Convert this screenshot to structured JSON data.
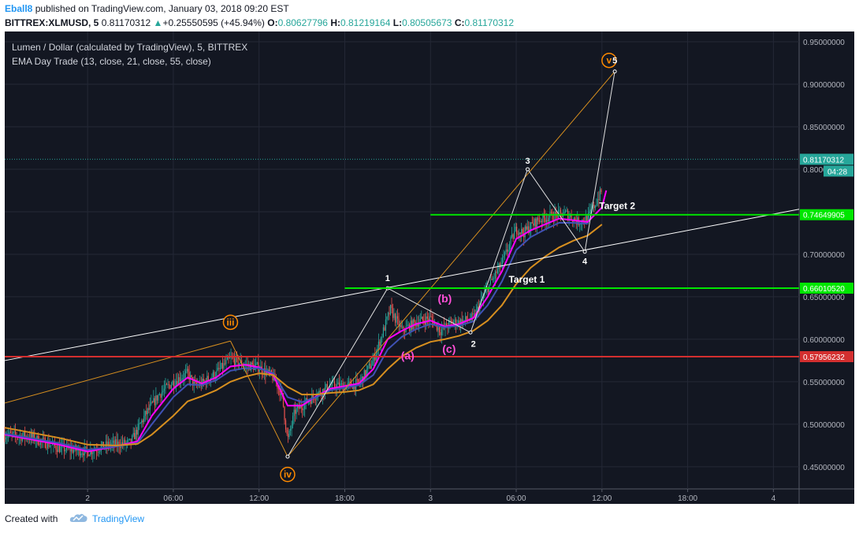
{
  "header": {
    "author": "Eball8",
    "published": "published on TradingView.com, January 03, 2018 09:20 EST",
    "symbol": "BITTREX:XLMUSD, 5",
    "last": "0.81170312",
    "change_arrow": "▲",
    "change": "+0.25550595 (+45.94%)",
    "o_label": "O:",
    "o_value": "0.80627796",
    "h_label": "H:",
    "h_value": "0.81219164",
    "l_label": "L:",
    "l_value": "0.80505673",
    "c_label": "C:",
    "c_value": "0.81170312"
  },
  "footer": {
    "created_with": "Created with",
    "brand": "TradingView"
  },
  "colors": {
    "background": "#131722",
    "grid": "#242836",
    "axis_text": "#b2b5be",
    "green_line": "#00e600",
    "red_line": "#d32f2f",
    "ema13": "#ff00ff",
    "ema21": "#3f51b5",
    "ema55": "#d78f1f",
    "wave_orange": "#ff8a00",
    "wave_pink": "#ff4fd8",
    "white": "#ffffff",
    "price_tag": "#26a69a"
  },
  "chart_data": {
    "type": "candlestick",
    "title": "Lumen / Dollar (calculated by TradingView), 5, BITTREX",
    "indicator": "EMA Day Trade (13, close, 21, close, 55, close)",
    "x_ticks": [
      "2",
      "06:00",
      "12:00",
      "18:00",
      "3",
      "06:00",
      "12:00",
      "18:00",
      "4"
    ],
    "x_tick_hours": [
      0,
      6,
      12,
      18,
      24,
      30,
      36,
      42,
      48
    ],
    "x_range_hours": [
      -5.8,
      49.8
    ],
    "ylim": [
      0.424,
      0.962
    ],
    "y_ticks": [
      "0.45000000",
      "0.50000000",
      "0.55000000",
      "0.60000000",
      "0.65000000",
      "0.70000000",
      "0.75000000",
      "0.80000000",
      "0.85000000",
      "0.90000000",
      "0.95000000"
    ],
    "y_tick_values": [
      0.45,
      0.5,
      0.55,
      0.6,
      0.65,
      0.7,
      0.75,
      0.8,
      0.85,
      0.9,
      0.95
    ],
    "close_path": [
      {
        "t": -5.8,
        "v": 0.488
      },
      {
        "t": -4,
        "v": 0.485
      },
      {
        "t": -2,
        "v": 0.472
      },
      {
        "t": 0,
        "v": 0.468
      },
      {
        "t": 1.5,
        "v": 0.476
      },
      {
        "t": 3,
        "v": 0.478
      },
      {
        "t": 4,
        "v": 0.51
      },
      {
        "t": 5,
        "v": 0.535
      },
      {
        "t": 6,
        "v": 0.55
      },
      {
        "t": 7,
        "v": 0.56
      },
      {
        "t": 7.5,
        "v": 0.545
      },
      {
        "t": 8,
        "v": 0.548
      },
      {
        "t": 9,
        "v": 0.56
      },
      {
        "t": 10,
        "v": 0.577
      },
      {
        "t": 11,
        "v": 0.57
      },
      {
        "t": 12,
        "v": 0.567
      },
      {
        "t": 13,
        "v": 0.555
      },
      {
        "t": 13.6,
        "v": 0.535
      },
      {
        "t": 14,
        "v": 0.48
      },
      {
        "t": 14.5,
        "v": 0.515
      },
      {
        "t": 15,
        "v": 0.522
      },
      {
        "t": 16,
        "v": 0.535
      },
      {
        "t": 17,
        "v": 0.545
      },
      {
        "t": 18,
        "v": 0.545
      },
      {
        "t": 19,
        "v": 0.548
      },
      {
        "t": 20,
        "v": 0.575
      },
      {
        "t": 20.7,
        "v": 0.61
      },
      {
        "t": 21.2,
        "v": 0.635
      },
      {
        "t": 22,
        "v": 0.61
      },
      {
        "t": 23,
        "v": 0.62
      },
      {
        "t": 24,
        "v": 0.625
      },
      {
        "t": 24.7,
        "v": 0.61
      },
      {
        "t": 25.5,
        "v": 0.62
      },
      {
        "t": 26,
        "v": 0.62
      },
      {
        "t": 27,
        "v": 0.625
      },
      {
        "t": 28,
        "v": 0.66
      },
      {
        "t": 29,
        "v": 0.69
      },
      {
        "t": 30,
        "v": 0.73
      },
      {
        "t": 30.5,
        "v": 0.725
      },
      {
        "t": 31.5,
        "v": 0.74
      },
      {
        "t": 32.5,
        "v": 0.745
      },
      {
        "t": 33.5,
        "v": 0.748
      },
      {
        "t": 34.3,
        "v": 0.738
      },
      {
        "t": 35,
        "v": 0.742
      },
      {
        "t": 35.7,
        "v": 0.765
      },
      {
        "t": 36,
        "v": 0.775
      }
    ],
    "series": [
      {
        "name": "EMA 13",
        "color": "#ff00ff",
        "points": [
          {
            "t": -5.8,
            "v": 0.488
          },
          {
            "t": -2,
            "v": 0.476
          },
          {
            "t": 0,
            "v": 0.468
          },
          {
            "t": 2,
            "v": 0.474
          },
          {
            "t": 3.5,
            "v": 0.48
          },
          {
            "t": 4.5,
            "v": 0.51
          },
          {
            "t": 6,
            "v": 0.542
          },
          {
            "t": 7,
            "v": 0.555
          },
          {
            "t": 8,
            "v": 0.548
          },
          {
            "t": 9,
            "v": 0.555
          },
          {
            "t": 10,
            "v": 0.568
          },
          {
            "t": 11,
            "v": 0.57
          },
          {
            "t": 12,
            "v": 0.567
          },
          {
            "t": 13,
            "v": 0.558
          },
          {
            "t": 14,
            "v": 0.522
          },
          {
            "t": 15,
            "v": 0.522
          },
          {
            "t": 16,
            "v": 0.533
          },
          {
            "t": 17,
            "v": 0.542
          },
          {
            "t": 18,
            "v": 0.545
          },
          {
            "t": 19,
            "v": 0.548
          },
          {
            "t": 20,
            "v": 0.565
          },
          {
            "t": 21,
            "v": 0.6
          },
          {
            "t": 22,
            "v": 0.61
          },
          {
            "t": 23,
            "v": 0.618
          },
          {
            "t": 24,
            "v": 0.622
          },
          {
            "t": 25,
            "v": 0.615
          },
          {
            "t": 26,
            "v": 0.618
          },
          {
            "t": 27,
            "v": 0.625
          },
          {
            "t": 28,
            "v": 0.65
          },
          {
            "t": 29,
            "v": 0.68
          },
          {
            "t": 30,
            "v": 0.718
          },
          {
            "t": 31,
            "v": 0.728
          },
          {
            "t": 32,
            "v": 0.735
          },
          {
            "t": 33,
            "v": 0.742
          },
          {
            "t": 34,
            "v": 0.74
          },
          {
            "t": 35,
            "v": 0.738
          },
          {
            "t": 36,
            "v": 0.755
          },
          {
            "t": 36.3,
            "v": 0.775
          }
        ]
      },
      {
        "name": "EMA 21",
        "color": "#3f51b5",
        "points": [
          {
            "t": -5.8,
            "v": 0.489
          },
          {
            "t": -2,
            "v": 0.478
          },
          {
            "t": 0,
            "v": 0.47
          },
          {
            "t": 2,
            "v": 0.474
          },
          {
            "t": 3.5,
            "v": 0.478
          },
          {
            "t": 4.5,
            "v": 0.5
          },
          {
            "t": 6,
            "v": 0.532
          },
          {
            "t": 7,
            "v": 0.547
          },
          {
            "t": 8,
            "v": 0.546
          },
          {
            "t": 9,
            "v": 0.552
          },
          {
            "t": 10,
            "v": 0.563
          },
          {
            "t": 11,
            "v": 0.566
          },
          {
            "t": 12,
            "v": 0.566
          },
          {
            "t": 13,
            "v": 0.56
          },
          {
            "t": 14,
            "v": 0.532
          },
          {
            "t": 15,
            "v": 0.526
          },
          {
            "t": 16,
            "v": 0.532
          },
          {
            "t": 17,
            "v": 0.54
          },
          {
            "t": 18,
            "v": 0.543
          },
          {
            "t": 19,
            "v": 0.546
          },
          {
            "t": 20,
            "v": 0.558
          },
          {
            "t": 21,
            "v": 0.588
          },
          {
            "t": 22,
            "v": 0.603
          },
          {
            "t": 23,
            "v": 0.612
          },
          {
            "t": 24,
            "v": 0.618
          },
          {
            "t": 25,
            "v": 0.614
          },
          {
            "t": 26,
            "v": 0.616
          },
          {
            "t": 27,
            "v": 0.621
          },
          {
            "t": 28,
            "v": 0.64
          },
          {
            "t": 29,
            "v": 0.668
          },
          {
            "t": 30,
            "v": 0.705
          },
          {
            "t": 31,
            "v": 0.72
          },
          {
            "t": 32,
            "v": 0.729
          },
          {
            "t": 33,
            "v": 0.737
          },
          {
            "t": 34,
            "v": 0.737
          },
          {
            "t": 35,
            "v": 0.736
          }
        ]
      },
      {
        "name": "EMA 55",
        "color": "#d78f1f",
        "points": [
          {
            "t": -5.8,
            "v": 0.496
          },
          {
            "t": -2,
            "v": 0.484
          },
          {
            "t": 0,
            "v": 0.476
          },
          {
            "t": 2,
            "v": 0.475
          },
          {
            "t": 3.5,
            "v": 0.477
          },
          {
            "t": 4.5,
            "v": 0.488
          },
          {
            "t": 6,
            "v": 0.51
          },
          {
            "t": 7,
            "v": 0.527
          },
          {
            "t": 8,
            "v": 0.533
          },
          {
            "t": 9,
            "v": 0.54
          },
          {
            "t": 10,
            "v": 0.55
          },
          {
            "t": 11,
            "v": 0.556
          },
          {
            "t": 12,
            "v": 0.56
          },
          {
            "t": 13,
            "v": 0.558
          },
          {
            "t": 14,
            "v": 0.544
          },
          {
            "t": 15,
            "v": 0.535
          },
          {
            "t": 16,
            "v": 0.535
          },
          {
            "t": 17,
            "v": 0.537
          },
          {
            "t": 18,
            "v": 0.538
          },
          {
            "t": 19,
            "v": 0.54
          },
          {
            "t": 20,
            "v": 0.547
          },
          {
            "t": 21,
            "v": 0.565
          },
          {
            "t": 22,
            "v": 0.58
          },
          {
            "t": 23,
            "v": 0.59
          },
          {
            "t": 24,
            "v": 0.597
          },
          {
            "t": 25,
            "v": 0.6
          },
          {
            "t": 26,
            "v": 0.604
          },
          {
            "t": 27,
            "v": 0.61
          },
          {
            "t": 28,
            "v": 0.622
          },
          {
            "t": 29,
            "v": 0.64
          },
          {
            "t": 30,
            "v": 0.665
          },
          {
            "t": 31,
            "v": 0.684
          },
          {
            "t": 32,
            "v": 0.697
          },
          {
            "t": 33,
            "v": 0.708
          },
          {
            "t": 34,
            "v": 0.716
          },
          {
            "t": 35,
            "v": 0.722
          },
          {
            "t": 36,
            "v": 0.735
          }
        ]
      }
    ],
    "horizontal_lines": [
      {
        "name": "Target 1",
        "label": "Target 1",
        "value": 0.6601052,
        "tag": "0.66010520",
        "color": "#00e600",
        "t_start": 18
      },
      {
        "name": "Target 2",
        "label": "Target 2",
        "value": 0.74649905,
        "tag": "0.74649905",
        "color": "#00e600",
        "t_start": 24
      },
      {
        "name": "Support",
        "value": 0.57956232,
        "tag": "0.57956232",
        "color": "#d32f2f",
        "t_start": -5.8
      },
      {
        "name": "Last price",
        "value": 0.81170312,
        "tag": "0.81170312",
        "countdown": "04:28",
        "color": "#26a69a",
        "t_start": -5.8
      }
    ],
    "trend_lines": [
      {
        "name": "white-trendline",
        "color": "#ffffff",
        "points": [
          {
            "t": -5.8,
            "v": 0.575
          },
          {
            "t": 49.8,
            "v": 0.753
          }
        ]
      },
      {
        "name": "orange-channel",
        "color": "#d78f1f",
        "points": [
          {
            "t": -5.8,
            "v": 0.525
          },
          {
            "t": 10,
            "v": 0.598
          }
        ]
      },
      {
        "name": "orange-wave-iii-iv",
        "color": "#d78f1f",
        "points": [
          {
            "t": 10,
            "v": 0.598
          },
          {
            "t": 14,
            "v": 0.462
          }
        ]
      },
      {
        "name": "orange-wave-iv-v",
        "color": "#d78f1f",
        "points": [
          {
            "t": 14,
            "v": 0.462
          },
          {
            "t": 36.9,
            "v": 0.915
          }
        ]
      }
    ],
    "wave_path": [
      {
        "t": 14,
        "v": 0.462
      },
      {
        "t": 21,
        "v": 0.66
      },
      {
        "t": 26.8,
        "v": 0.608
      },
      {
        "t": 30.8,
        "v": 0.8
      },
      {
        "t": 34.8,
        "v": 0.703
      },
      {
        "t": 36.9,
        "v": 0.915
      }
    ],
    "annotations": [
      {
        "text": "iii",
        "style": "orange-circle",
        "t": 10,
        "v": 0.62
      },
      {
        "text": "iv",
        "style": "orange-circle",
        "t": 14,
        "v": 0.441
      },
      {
        "text": "v",
        "style": "orange-circle",
        "t": 36.5,
        "v": 0.928
      },
      {
        "text": "1",
        "style": "white",
        "t": 21,
        "v": 0.672
      },
      {
        "text": "2",
        "style": "white",
        "t": 27,
        "v": 0.595
      },
      {
        "text": "3",
        "style": "white",
        "t": 30.8,
        "v": 0.81
      },
      {
        "text": "4",
        "style": "white",
        "t": 34.8,
        "v": 0.692
      },
      {
        "text": "5",
        "style": "white",
        "t": 36.9,
        "v": 0.928
      },
      {
        "text": "(a)",
        "style": "pink",
        "t": 22.4,
        "v": 0.58
      },
      {
        "text": "(b)",
        "style": "pink",
        "t": 25,
        "v": 0.647
      },
      {
        "text": "(c)",
        "style": "pink",
        "t": 25.3,
        "v": 0.588
      }
    ]
  }
}
